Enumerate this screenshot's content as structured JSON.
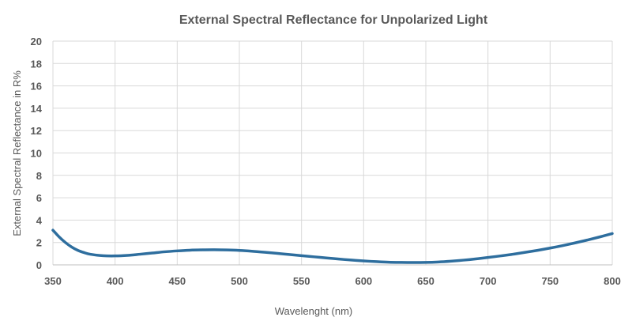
{
  "chart_data": {
    "type": "line",
    "title": "External Spectral Reflectance for Unpolarized Light",
    "xlabel": "Wavelenght  (nm)",
    "ylabel": "External Spectral Reflectance in R%",
    "xlim": [
      350,
      800
    ],
    "ylim": [
      0,
      20
    ],
    "x_ticks": [
      "350",
      "400",
      "450",
      "500",
      "550",
      "600",
      "650",
      "700",
      "750",
      "800"
    ],
    "y_ticks": [
      "0",
      "2",
      "4",
      "6",
      "8",
      "10",
      "12",
      "14",
      "16",
      "18",
      "20"
    ],
    "grid": true,
    "legend": "none",
    "line_color": "#2e6e9e",
    "series": [
      {
        "x": [
          350,
          355,
          360,
          365,
          370,
          375,
          380,
          390,
          400,
          410,
          420,
          430,
          440,
          450,
          460,
          470,
          480,
          490,
          500,
          510,
          520,
          530,
          540,
          550,
          560,
          570,
          580,
          590,
          600,
          610,
          620,
          630,
          640,
          650,
          660,
          670,
          680,
          690,
          700,
          710,
          720,
          730,
          740,
          750,
          760,
          770,
          780,
          790,
          800
        ],
        "y": [
          3.1,
          2.5,
          2.0,
          1.6,
          1.3,
          1.1,
          0.95,
          0.82,
          0.8,
          0.85,
          0.95,
          1.06,
          1.17,
          1.25,
          1.31,
          1.34,
          1.35,
          1.33,
          1.29,
          1.22,
          1.13,
          1.03,
          0.93,
          0.82,
          0.72,
          0.62,
          0.52,
          0.43,
          0.35,
          0.29,
          0.24,
          0.22,
          0.21,
          0.22,
          0.26,
          0.33,
          0.42,
          0.53,
          0.66,
          0.8,
          0.95,
          1.12,
          1.3,
          1.5,
          1.72,
          1.96,
          2.22,
          2.5,
          2.8
        ]
      }
    ]
  }
}
